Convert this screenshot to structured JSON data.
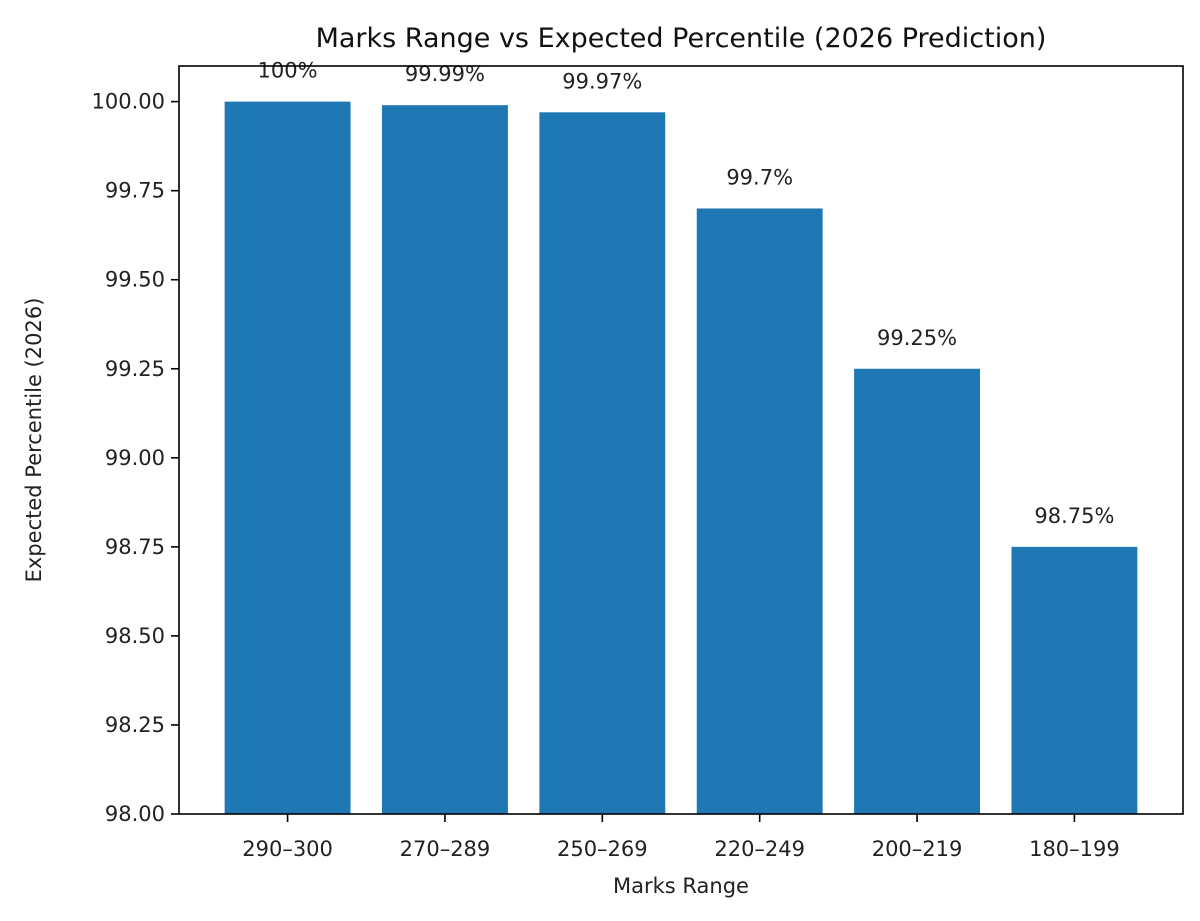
{
  "chart_data": {
    "type": "bar",
    "title": "Marks Range vs Expected Percentile (2026 Prediction)",
    "xlabel": "Marks Range",
    "ylabel": "Expected Percentile (2026)",
    "categories": [
      "290–300",
      "270–289",
      "250–269",
      "220–249",
      "200–219",
      "180–199"
    ],
    "values": [
      100,
      99.99,
      99.97,
      99.7,
      99.25,
      98.75
    ],
    "data_labels": [
      "100%",
      "99.99%",
      "99.97%",
      "99.7%",
      "99.25%",
      "98.75%"
    ],
    "ylim": [
      98.0,
      100.1
    ],
    "xlim": [
      -0.69,
      5.69
    ],
    "yticks": [
      98.0,
      98.25,
      98.5,
      98.75,
      99.0,
      99.25,
      99.5,
      99.75,
      100.0
    ],
    "ytick_labels": [
      "98.00",
      "98.25",
      "98.50",
      "98.75",
      "99.00",
      "99.25",
      "99.50",
      "99.75",
      "100.00"
    ],
    "bar_width": 0.8,
    "grid": false,
    "colors": {
      "bar": "#1f77b4",
      "axis": "#000000"
    }
  }
}
